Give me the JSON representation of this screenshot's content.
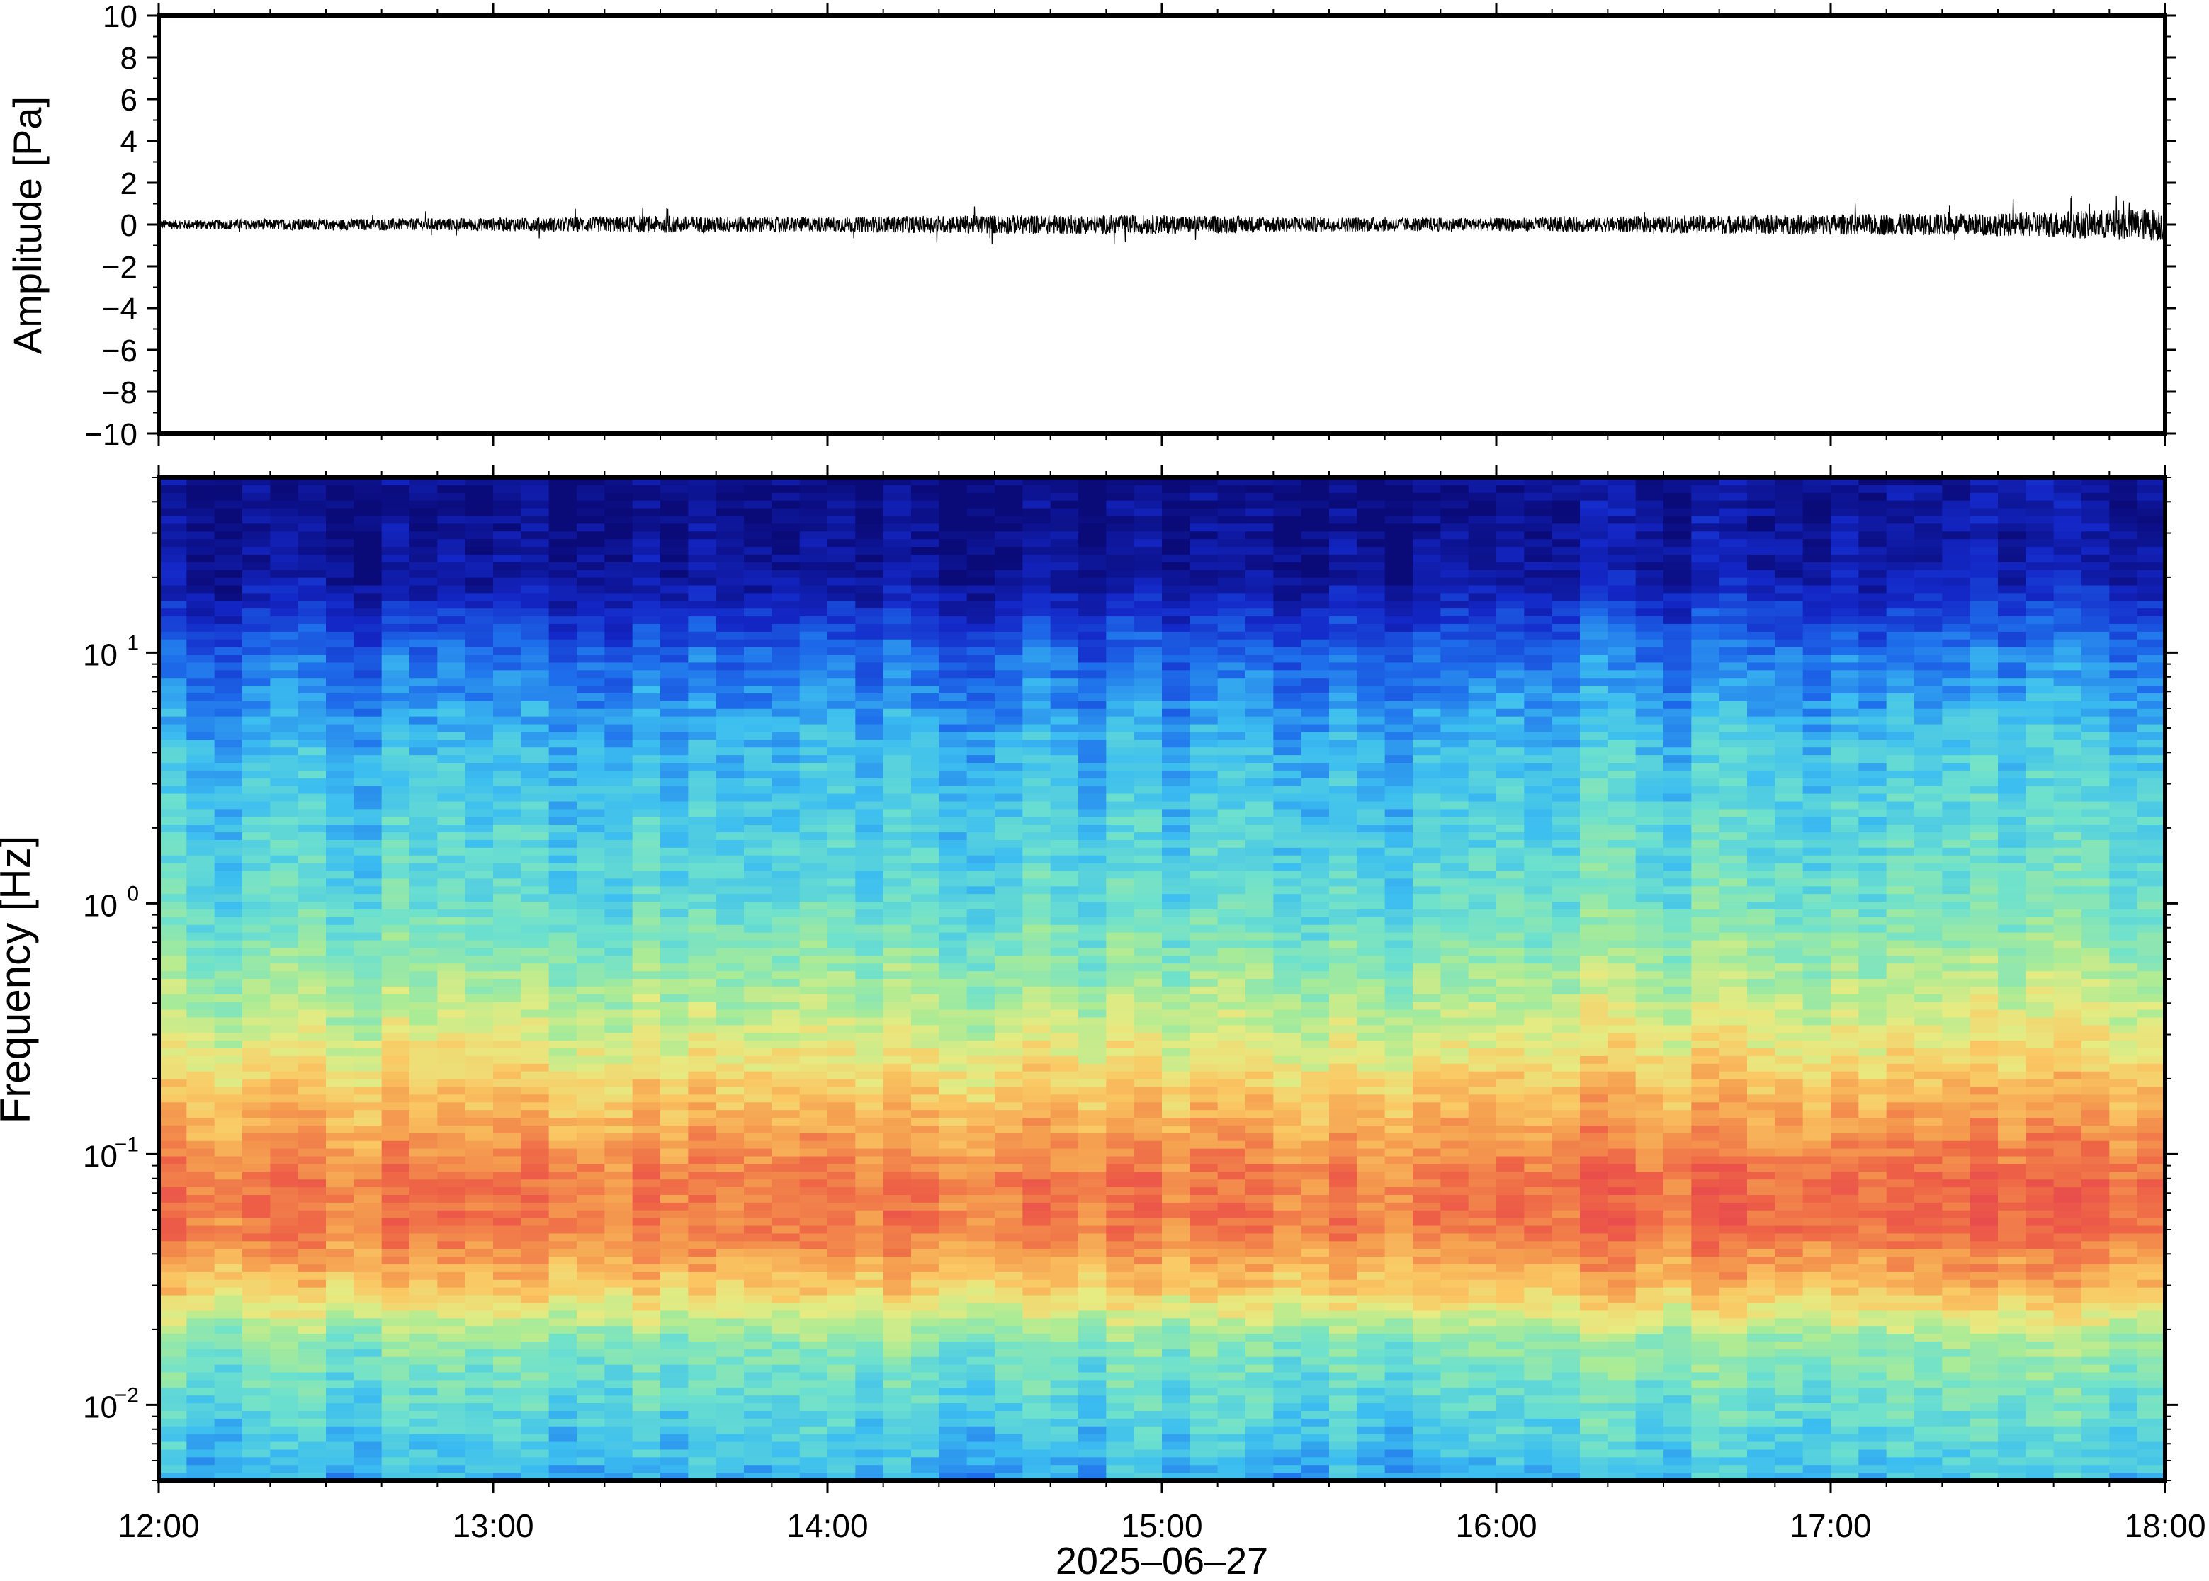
{
  "chart_data": [
    {
      "type": "line",
      "title": "",
      "ylabel": "Amplitude [Pa]",
      "xlabel": "",
      "ylim": [
        -10,
        10
      ],
      "yticks": [
        10,
        8,
        6,
        4,
        2,
        0,
        -2,
        -4,
        -6,
        -8,
        -10
      ],
      "ytick_labels": [
        "10",
        "8",
        "6",
        "4",
        "2",
        "0",
        "−2",
        "−4",
        "−6",
        "−8",
        "−10"
      ],
      "x_range": [
        "2025-06-27 12:00",
        "2025-06-27 18:00"
      ],
      "grid": false,
      "series": [
        {
          "values_description_free": true,
          "envelope_x_hours": [
            12.0,
            12.5,
            13.0,
            13.5,
            14.0,
            14.5,
            15.0,
            15.5,
            16.0,
            16.5,
            17.0,
            17.5,
            18.0
          ],
          "envelope_peak_pa": [
            0.5,
            0.6,
            0.7,
            0.9,
            0.8,
            1.0,
            1.0,
            0.8,
            0.7,
            0.9,
            1.1,
            1.2,
            1.8
          ],
          "color": "#000000"
        }
      ]
    },
    {
      "type": "heatmap",
      "title": "",
      "ylabel": "Frequency [Hz]",
      "xlabel": "2025–06–27",
      "yscale": "log",
      "ylim": [
        0.005,
        50
      ],
      "yticks": [
        {
          "base": "10",
          "exp": "1"
        },
        {
          "base": "10",
          "exp": "0"
        },
        {
          "base": "10",
          "exp": "−1"
        },
        {
          "base": "10",
          "exp": "−2"
        }
      ],
      "xticks": [
        "12:00",
        "13:00",
        "14:00",
        "15:00",
        "16:00",
        "17:00",
        "18:00"
      ],
      "x_hours": [
        12,
        13,
        14,
        15,
        16,
        17,
        18
      ],
      "colormap": "jet (dark blue = low power, red = high power)",
      "power_profile_by_log10_freq": [
        {
          "log10_f": 1.6,
          "level": 0.02
        },
        {
          "log10_f": 1.3,
          "level": 0.05
        },
        {
          "log10_f": 1.0,
          "level": 0.22
        },
        {
          "log10_f": 0.6,
          "level": 0.34
        },
        {
          "log10_f": 0.0,
          "level": 0.42
        },
        {
          "log10_f": -0.5,
          "level": 0.58
        },
        {
          "log10_f": -0.8,
          "level": 0.72
        },
        {
          "log10_f": -1.1,
          "level": 0.84
        },
        {
          "log10_f": -1.3,
          "level": 0.84
        },
        {
          "log10_f": -1.55,
          "level": 0.68
        },
        {
          "log10_f": -1.75,
          "level": 0.48
        },
        {
          "log10_f": -2.3,
          "level": 0.32
        }
      ],
      "grid": false
    }
  ],
  "axes": {
    "top": {
      "ylabel": "Amplitude [Pa]"
    },
    "bottom": {
      "ylabel": "Frequency [Hz]",
      "xlabel": "2025–06–27"
    }
  }
}
